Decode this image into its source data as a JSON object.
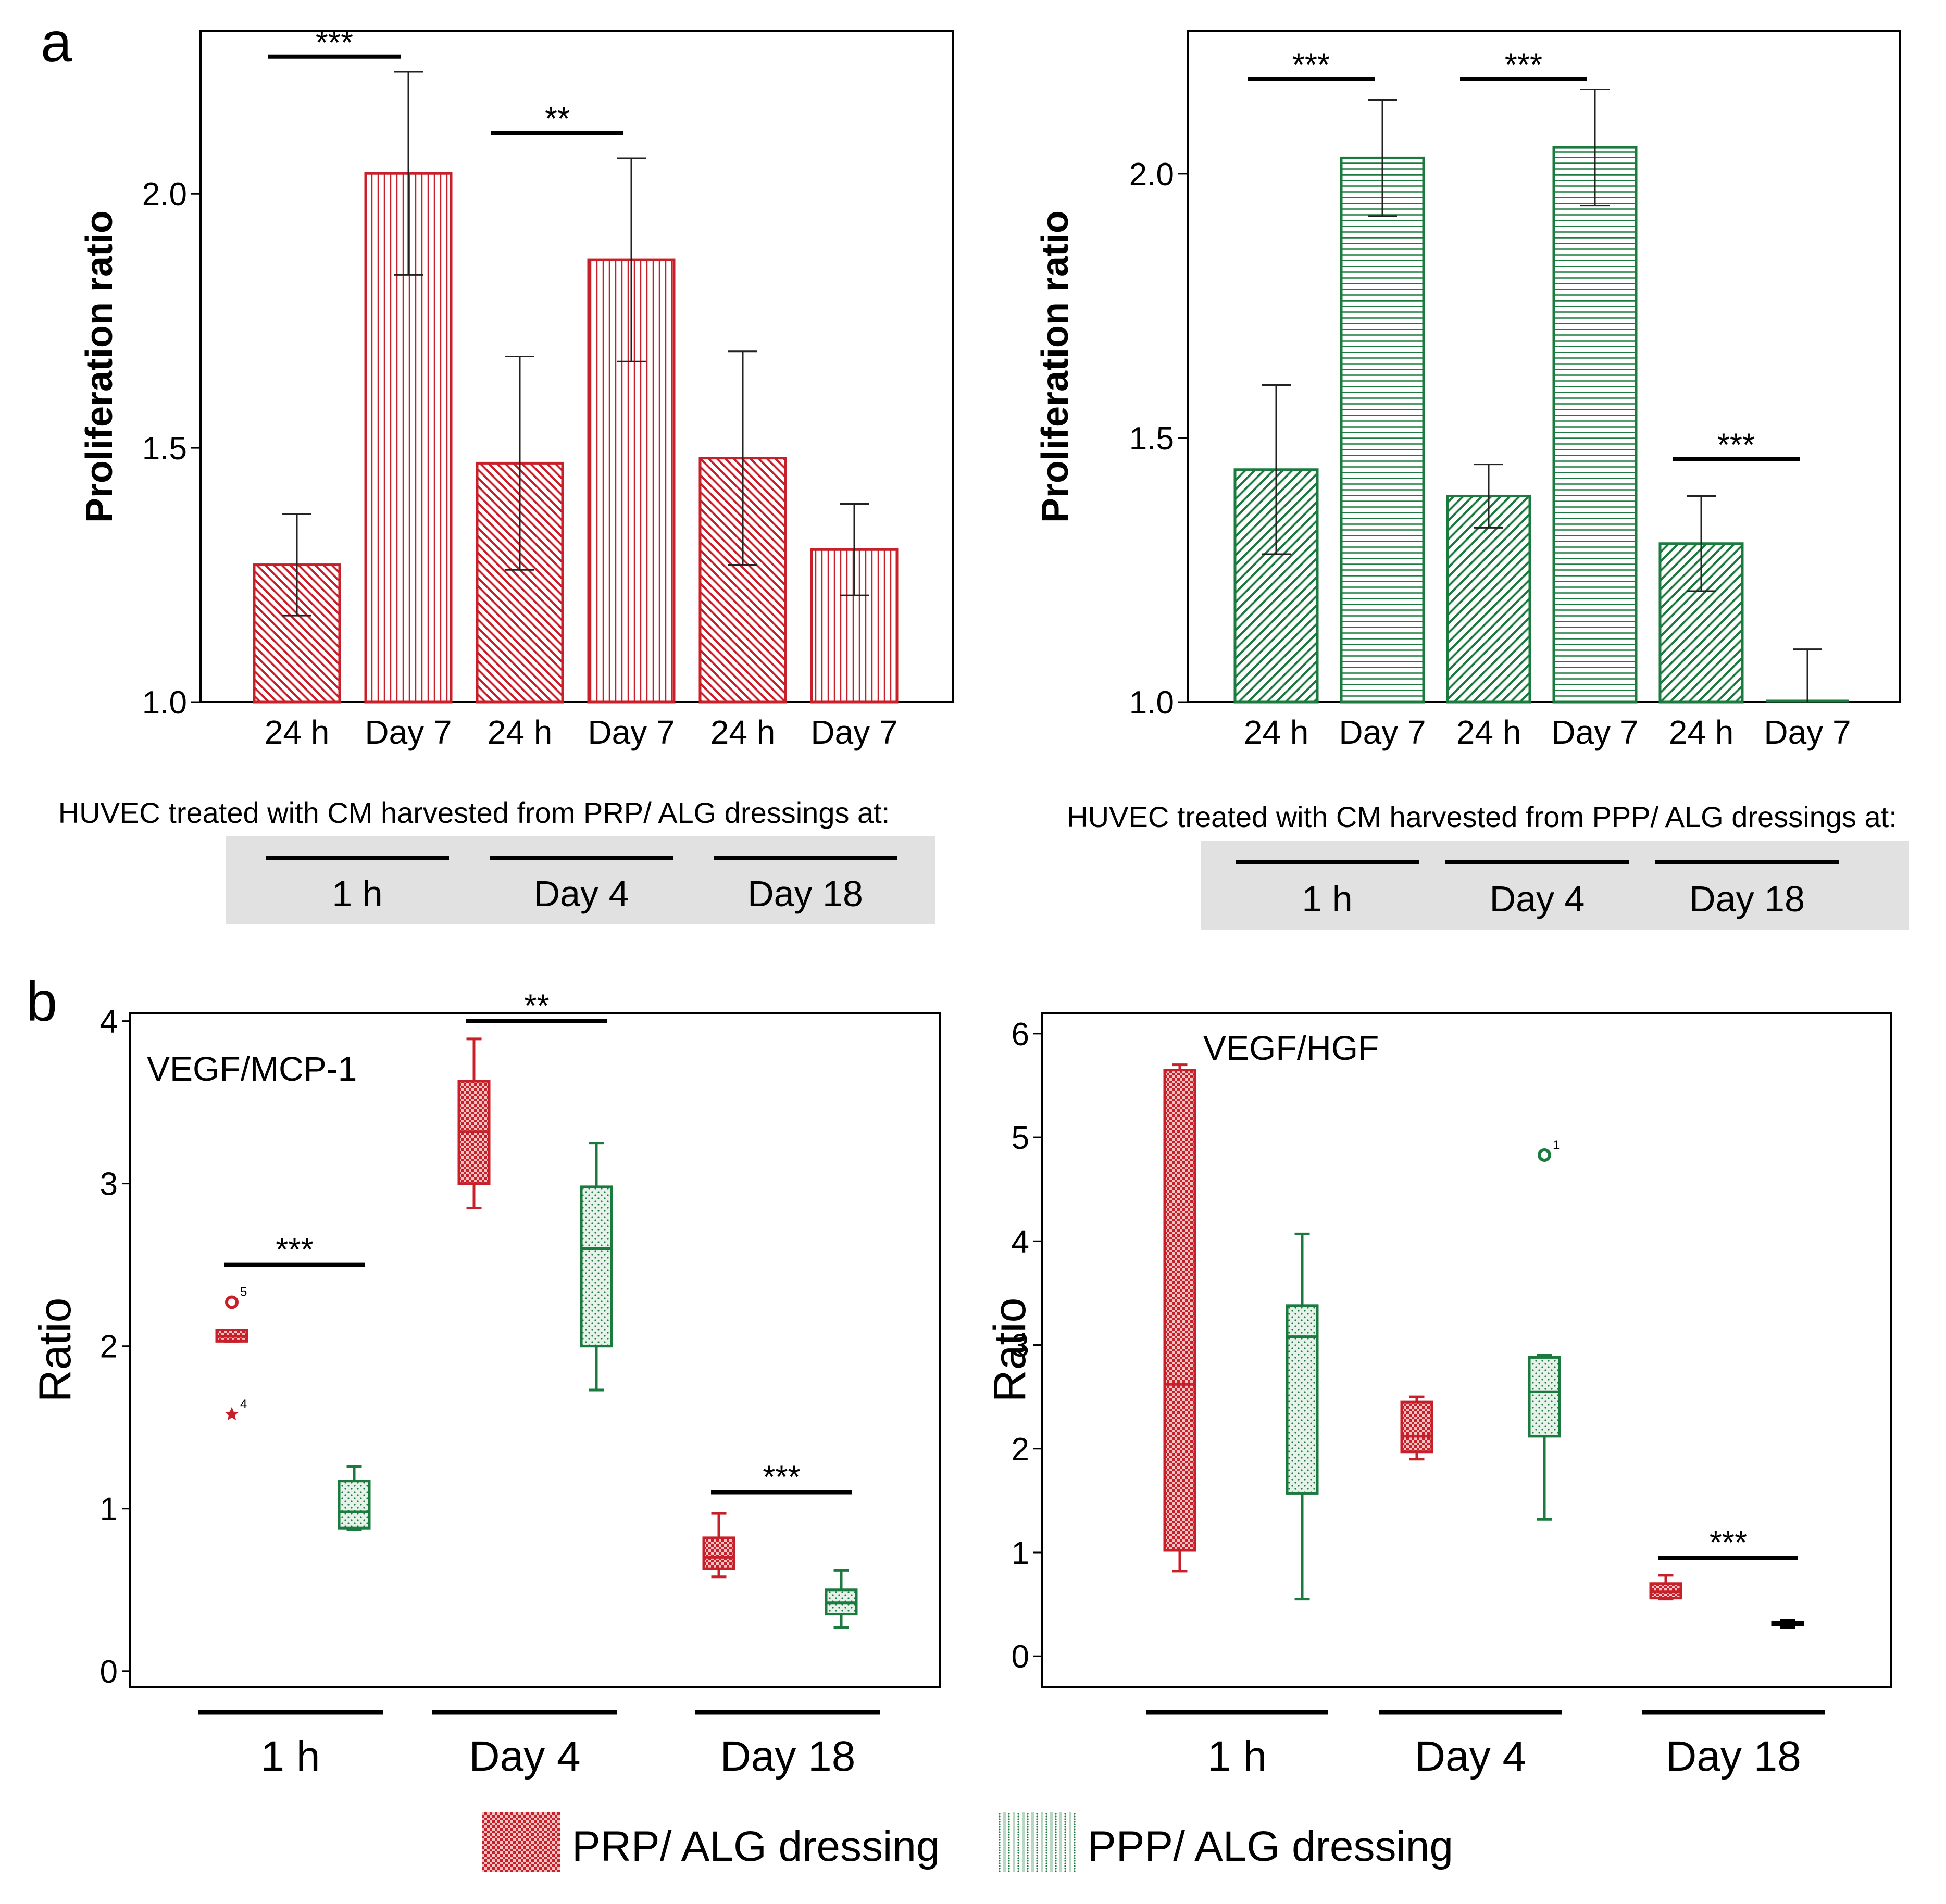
{
  "colors": {
    "prp": "#c8202a",
    "ppp": "#1b7a3e",
    "axis": "#000000",
    "gray_band": "#e1e1e1"
  },
  "panels": {
    "a": "a",
    "b": "b"
  },
  "chart_data": [
    {
      "id": "a-left",
      "type": "bar",
      "ylabel": "Proliferation ratio",
      "ylim": [
        1.0,
        2.32
      ],
      "yticks": [
        "1.0",
        "1.5",
        "2.0"
      ],
      "categories": [
        "24 h",
        "Day 7",
        "24 h",
        "Day 7",
        "24 h",
        "Day 7"
      ],
      "values": [
        1.27,
        2.04,
        1.47,
        1.87,
        1.48,
        1.3
      ],
      "errors": [
        0.1,
        0.2,
        0.21,
        0.2,
        0.21,
        0.09
      ],
      "pattern": [
        "diag",
        "vert",
        "diag",
        "vert",
        "diag",
        "vert"
      ],
      "series_color": "prp",
      "significance": [
        {
          "from": 0,
          "to": 1,
          "label": "***",
          "y": 2.27
        },
        {
          "from": 2,
          "to": 3,
          "label": "**",
          "y": 2.12
        }
      ],
      "caption": "HUVEC treated with CM harvested from PRP/ ALG dressings at:",
      "groups": [
        "1 h",
        "Day 4",
        "Day 18"
      ]
    },
    {
      "id": "a-right",
      "type": "bar",
      "ylabel": "Proliferation ratio",
      "ylim": [
        1.0,
        2.27
      ],
      "yticks": [
        "1.0",
        "1.5",
        "2.0"
      ],
      "categories": [
        "24 h",
        "Day 7",
        "24 h",
        "Day 7",
        "24 h",
        "Day 7"
      ],
      "values": [
        1.44,
        2.03,
        1.39,
        2.05,
        1.3,
        1.0
      ],
      "errors": [
        0.16,
        0.11,
        0.06,
        0.11,
        0.09,
        0.1
      ],
      "pattern": [
        "diag",
        "horiz",
        "diag",
        "horiz",
        "diag",
        "horiz"
      ],
      "series_color": "ppp",
      "significance": [
        {
          "from": 0,
          "to": 1,
          "label": "***",
          "y": 2.18
        },
        {
          "from": 2,
          "to": 3,
          "label": "***",
          "y": 2.18
        },
        {
          "from": 4,
          "to": 5,
          "label": "***",
          "y": 1.46
        }
      ],
      "caption": "HUVEC treated with CM harvested from PPP/ ALG dressings at:",
      "groups": [
        "1 h",
        "Day 4",
        "Day 18"
      ]
    },
    {
      "id": "b-left",
      "type": "box",
      "title": "VEGF/MCP-1",
      "ylabel": "Ratio",
      "ylim": [
        -0.1,
        4.05
      ],
      "yticks": [
        "0",
        "1",
        "2",
        "3",
        "4"
      ],
      "groups": [
        "1 h",
        "Day 4",
        "Day 18"
      ],
      "boxes": [
        {
          "series": "prp",
          "group": 0,
          "min": 2.03,
          "q1": 2.03,
          "median": 2.06,
          "q3": 2.1,
          "max": 2.1,
          "outliers": [
            {
              "y": 2.27,
              "label": "5",
              "marker": "circle"
            },
            {
              "y": 1.58,
              "label": "4",
              "marker": "star"
            }
          ]
        },
        {
          "series": "ppp",
          "group": 0,
          "min": 0.87,
          "q1": 0.88,
          "median": 0.98,
          "q3": 1.17,
          "max": 1.26,
          "outliers": []
        },
        {
          "series": "prp",
          "group": 1,
          "min": 2.85,
          "q1": 3.0,
          "median": 3.32,
          "q3": 3.63,
          "max": 3.89,
          "outliers": []
        },
        {
          "series": "ppp",
          "group": 1,
          "min": 1.73,
          "q1": 2.0,
          "median": 2.6,
          "q3": 2.98,
          "max": 3.25,
          "outliers": []
        },
        {
          "series": "prp",
          "group": 2,
          "min": 0.58,
          "q1": 0.63,
          "median": 0.7,
          "q3": 0.82,
          "max": 0.97,
          "outliers": []
        },
        {
          "series": "ppp",
          "group": 2,
          "min": 0.27,
          "q1": 0.35,
          "median": 0.42,
          "q3": 0.5,
          "max": 0.62,
          "outliers": []
        }
      ],
      "significance": [
        {
          "group": 0,
          "label": "***",
          "y": 2.5
        },
        {
          "group": 1,
          "label": "**",
          "y": 4.0
        },
        {
          "group": 2,
          "label": "***",
          "y": 1.1
        }
      ]
    },
    {
      "id": "b-right",
      "type": "box",
      "title": "VEGF/HGF",
      "ylabel": "Ratio",
      "ylim": [
        -0.3,
        6.2
      ],
      "yticks": [
        "0",
        "1",
        "2",
        "3",
        "4",
        "5",
        "6"
      ],
      "groups": [
        "1 h",
        "Day 4",
        "Day 18"
      ],
      "boxes": [
        {
          "series": "prp",
          "group": 0,
          "min": 0.82,
          "q1": 1.02,
          "median": 2.62,
          "q3": 5.65,
          "max": 5.7,
          "outliers": []
        },
        {
          "series": "ppp",
          "group": 0,
          "min": 0.55,
          "q1": 1.57,
          "median": 3.08,
          "q3": 3.38,
          "max": 4.07,
          "outliers": []
        },
        {
          "series": "prp",
          "group": 1,
          "min": 1.9,
          "q1": 1.97,
          "median": 2.12,
          "q3": 2.45,
          "max": 2.5,
          "outliers": []
        },
        {
          "series": "ppp",
          "group": 1,
          "min": 1.32,
          "q1": 2.12,
          "median": 2.55,
          "q3": 2.88,
          "max": 2.9,
          "outliers": [
            {
              "y": 4.83,
              "label": "1",
              "marker": "circle"
            }
          ]
        },
        {
          "series": "prp",
          "group": 2,
          "min": 0.55,
          "q1": 0.56,
          "median": 0.62,
          "q3": 0.7,
          "max": 0.78,
          "outliers": []
        },
        {
          "series": "black",
          "group": 2,
          "min": 0.28,
          "q1": 0.3,
          "median": 0.31,
          "q3": 0.33,
          "max": 0.35,
          "outliers": []
        }
      ],
      "significance": [
        {
          "group": 2,
          "label": "***",
          "y": 0.95
        }
      ]
    }
  ],
  "legend": [
    {
      "label": "PRP/ ALG dressing",
      "series": "prp"
    },
    {
      "label": "PPP/ ALG dressing",
      "series": "ppp"
    }
  ]
}
